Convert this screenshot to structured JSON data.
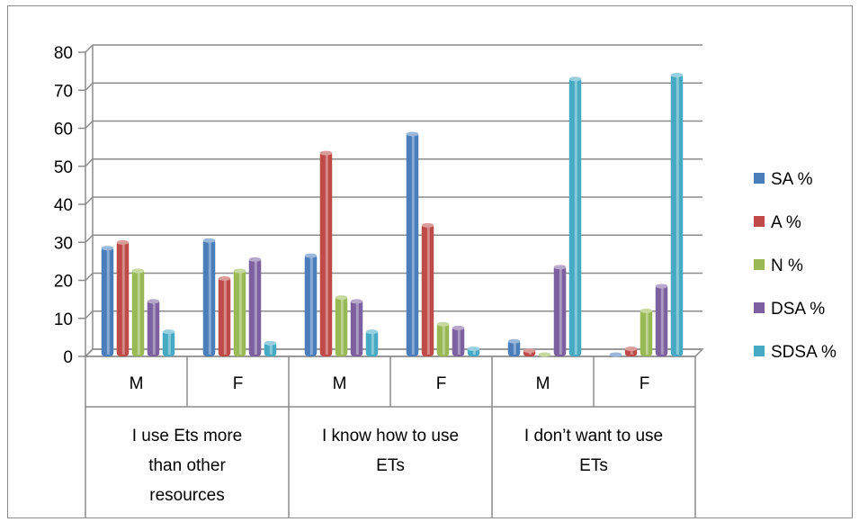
{
  "chart_data": {
    "type": "bar",
    "style": "3d-clustered-column",
    "categories": [
      {
        "label": "M",
        "group": "I use Ets more than other resources"
      },
      {
        "label": "F",
        "group": "I use Ets more than other resources"
      },
      {
        "label": "M",
        "group": "I know how to use ETs"
      },
      {
        "label": "F",
        "group": "I know how to use ETs"
      },
      {
        "label": "M",
        "group": "I don’t want to use ETs"
      },
      {
        "label": "F",
        "group": "I don’t want to use ETs"
      }
    ],
    "groups": [
      {
        "label": "I use Ets more than other resources",
        "lines": [
          "I use Ets more",
          "than other",
          "resources"
        ]
      },
      {
        "label": "I know how to use ETs",
        "lines": [
          "I know how to use",
          "ETs"
        ]
      },
      {
        "label": "I don’t want to use ETs",
        "lines": [
          "I don’t want to use",
          "ETs"
        ]
      }
    ],
    "series": [
      {
        "name": "SA %",
        "color": "#4a7ebb",
        "values": [
          28,
          30,
          26,
          58,
          3.5,
          0
        ]
      },
      {
        "name": "A %",
        "color": "#be4b48",
        "values": [
          29.5,
          20,
          53,
          34,
          1,
          1.5
        ]
      },
      {
        "name": "N %",
        "color": "#98b954",
        "values": [
          22,
          22,
          15,
          8,
          0,
          11.5
        ]
      },
      {
        "name": "DSA %",
        "color": "#7d60a0",
        "values": [
          14,
          25,
          14,
          7,
          23,
          18
        ]
      },
      {
        "name": "SDSA %",
        "color": "#46aac5",
        "values": [
          6,
          3,
          6,
          1.5,
          72.5,
          73.5
        ]
      }
    ],
    "y_ticks": [
      "0",
      "10",
      "20",
      "30",
      "40",
      "50",
      "60",
      "70",
      "80"
    ],
    "ylim": [
      0,
      80
    ],
    "grid": true,
    "legend": "right"
  }
}
